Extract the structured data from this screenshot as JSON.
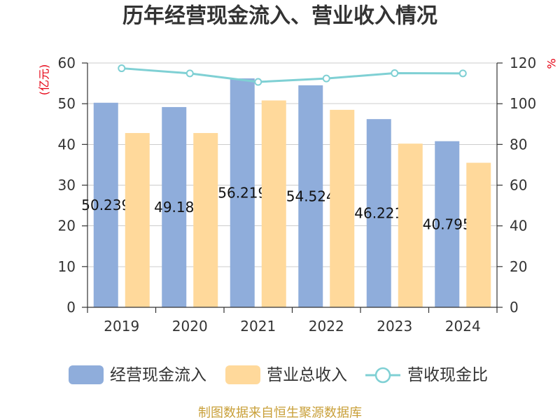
{
  "chart_data": {
    "type": "bar",
    "title": "历年经营现金流入、营业收入情况",
    "categories": [
      "2019",
      "2020",
      "2021",
      "2022",
      "2023",
      "2024"
    ],
    "series": [
      {
        "name": "经营现金流入",
        "type": "bar",
        "y_axis": "left",
        "color": "#8faddb",
        "data_labels": true,
        "values": [
          50.239,
          49.18,
          56.219,
          54.524,
          46.221,
          40.795
        ]
      },
      {
        "name": "营业总收入",
        "type": "bar",
        "y_axis": "left",
        "color": "#ffd99b",
        "values": [
          42.8,
          42.8,
          50.8,
          48.5,
          40.2,
          35.5
        ]
      },
      {
        "name": "营收现金比",
        "type": "line",
        "y_axis": "right",
        "color": "#7fd0d4",
        "values": [
          117.4,
          114.9,
          110.7,
          112.4,
          115.0,
          114.9
        ]
      }
    ],
    "ylabel": "(亿元)",
    "ylim": [
      0,
      60
    ],
    "yticks": [
      0,
      10,
      20,
      30,
      40,
      50,
      60
    ],
    "y2label": "%",
    "y2lim": [
      0,
      120
    ],
    "y2ticks": [
      0,
      20,
      40,
      60,
      80,
      100,
      120
    ],
    "grid": true,
    "legend": "bottom"
  },
  "footer": "制图数据来自恒生聚源数据库",
  "colors": {
    "text": "#333333",
    "axis_unit": "#e60012",
    "footer": "#c9a03a",
    "grid": "#cccccc"
  }
}
